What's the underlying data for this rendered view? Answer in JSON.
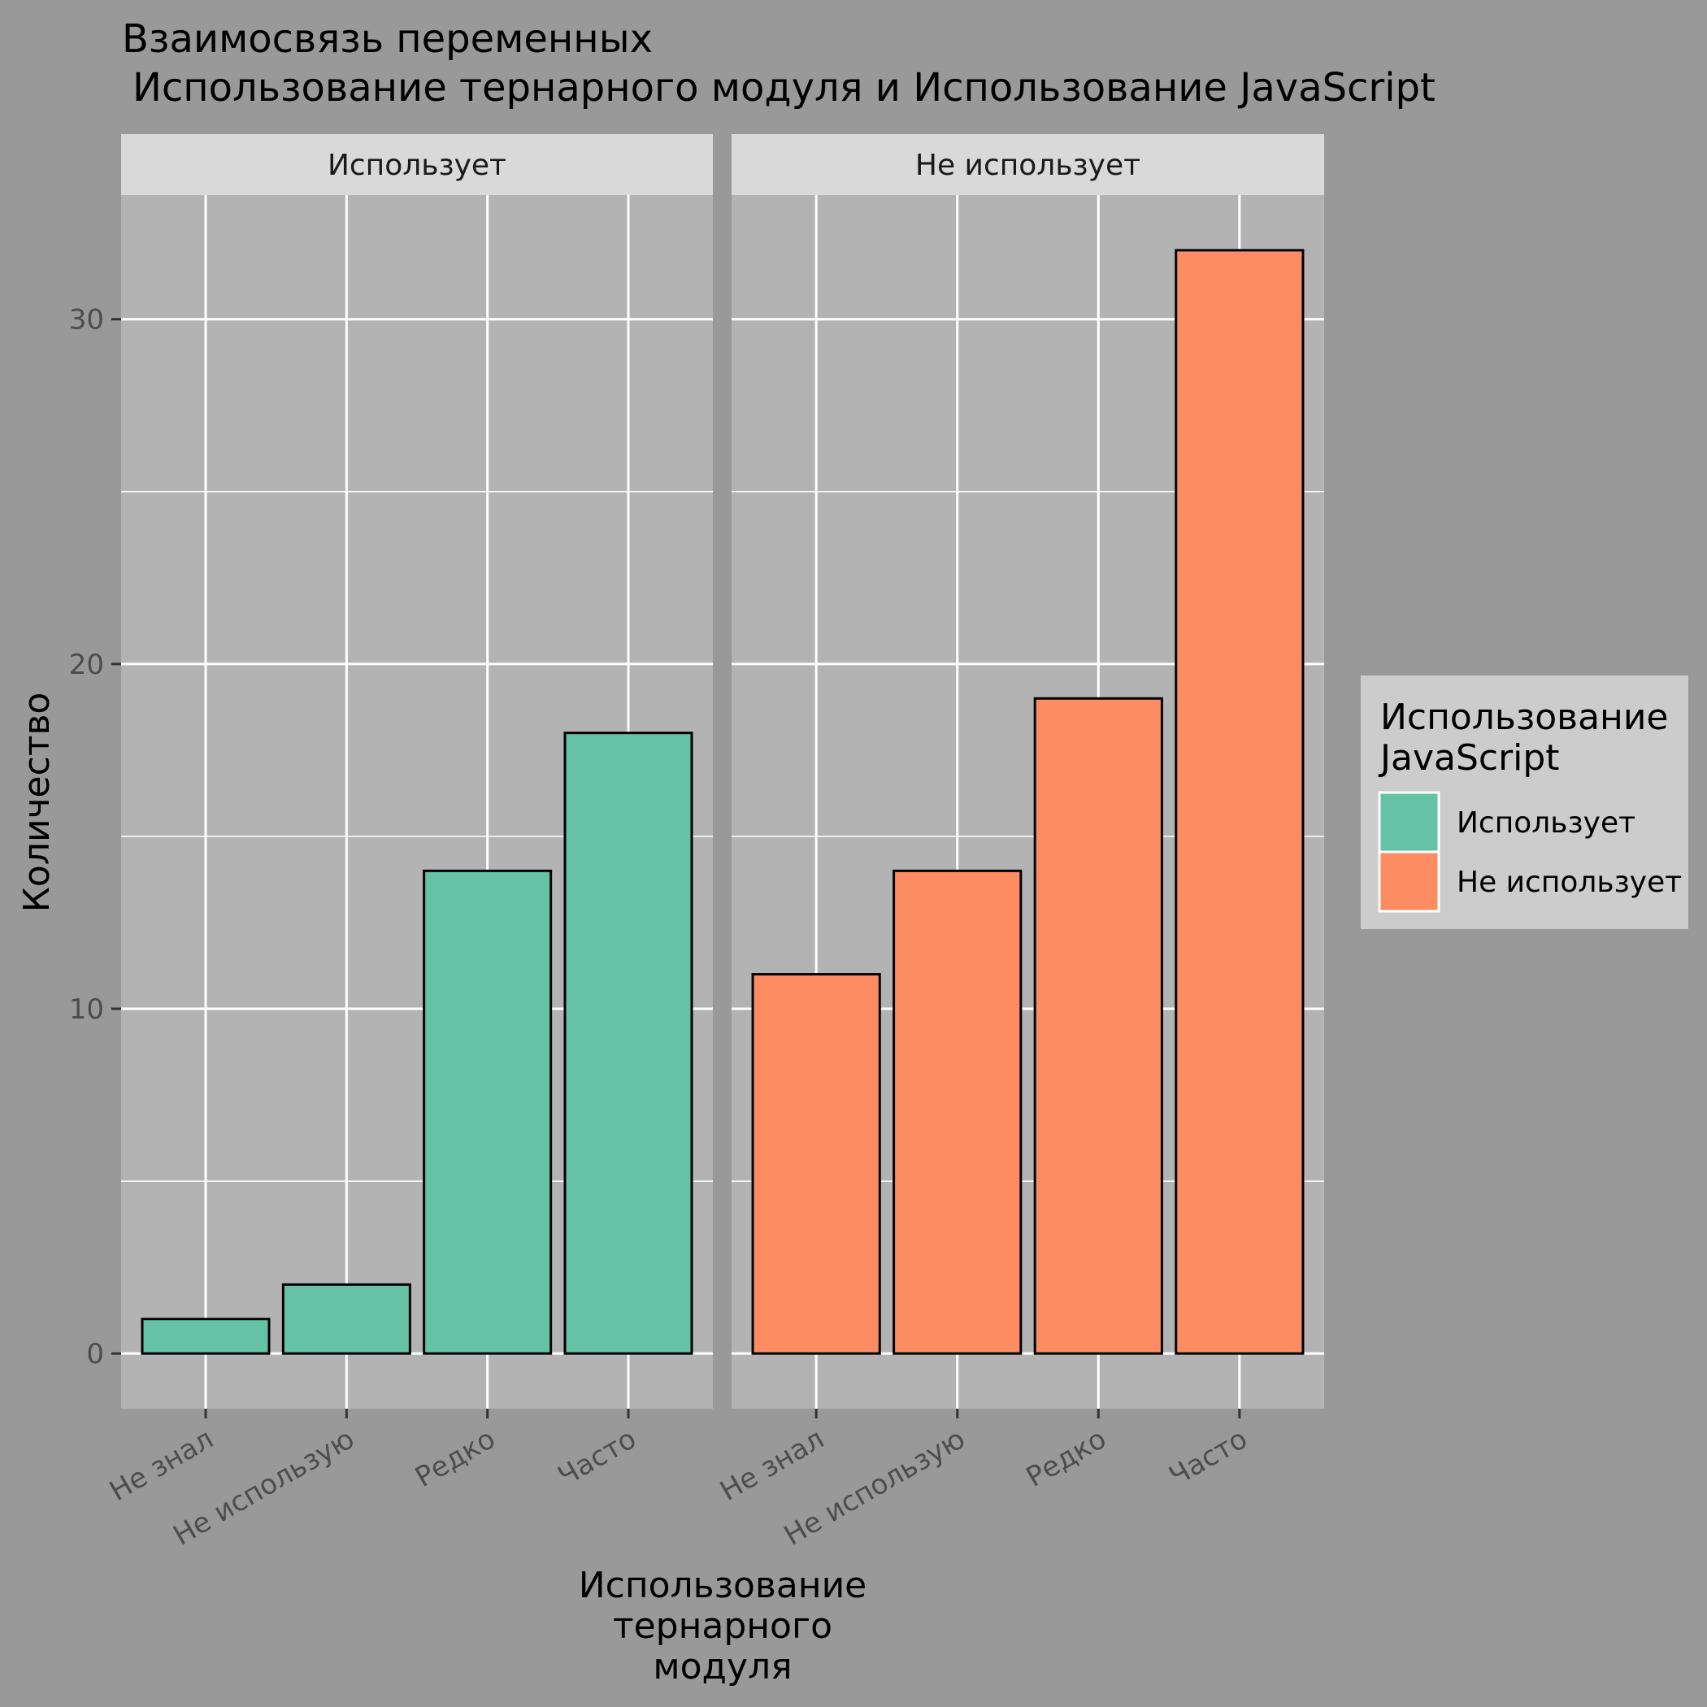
{
  "chart_data": {
    "type": "bar",
    "title": "Взаимосвязь переменных",
    "subtitle": "Использование тернарного модуля и Использование JavaScript",
    "xlabel": [
      "Использование",
      "тернарного",
      "модуля"
    ],
    "ylabel": "Количество",
    "categories": [
      "Не знал",
      "Не использую",
      "Редко",
      "Часто"
    ],
    "yticks": [
      0,
      10,
      20,
      30
    ],
    "ylim": [
      -1.6,
      33.6
    ],
    "grid": true,
    "legend_placement": "right",
    "legend": {
      "title": [
        "Использование",
        "JavaScript"
      ]
    },
    "series": [
      {
        "name": "Использует",
        "color": "#66c2a5",
        "values": [
          1,
          2,
          14,
          18
        ]
      },
      {
        "name": "Не использует",
        "color": "#fc8d62",
        "values": [
          11,
          14,
          19,
          32
        ]
      }
    ],
    "colors": {
      "background": "#999999",
      "panel": "#b3b3b3",
      "strip": "#d9d9d9",
      "grid": "#ffffff",
      "legend_bg": "#cccccc"
    }
  }
}
